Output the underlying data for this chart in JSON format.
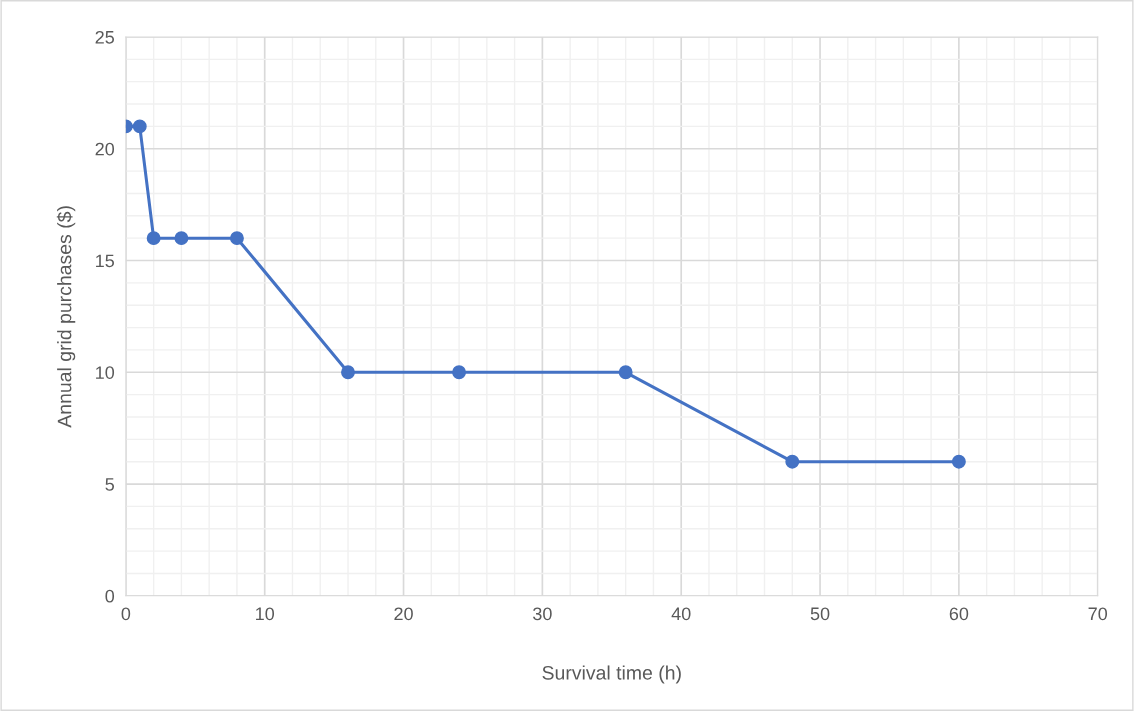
{
  "chart_data": {
    "type": "line",
    "xlabel": "Survival time (h)",
    "ylabel": "Annual grid purchases ($)",
    "x": [
      0,
      1,
      2,
      4,
      8,
      16,
      24,
      36,
      48,
      60
    ],
    "series": [
      {
        "color": "#4472c4",
        "values": [
          21,
          21,
          16,
          16,
          16,
          10,
          10,
          10,
          6,
          6
        ]
      }
    ],
    "xlim": [
      0,
      70
    ],
    "xticks": [
      0,
      10,
      20,
      30,
      40,
      50,
      60,
      70
    ],
    "ylim": [
      0,
      25
    ],
    "yticks": [
      0,
      5,
      10,
      15,
      20,
      25
    ],
    "grid": true,
    "marker": "circle",
    "line_style": "solid"
  }
}
